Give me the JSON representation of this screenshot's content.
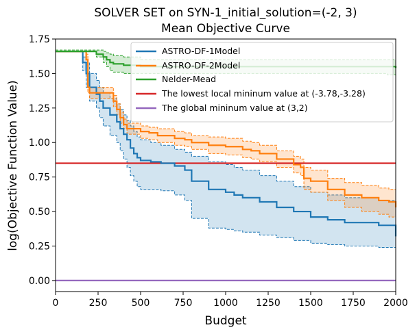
{
  "chart_data": {
    "type": "line",
    "title": "SOLVER SET on SYN-1_initial_solution=(-2, 3)",
    "subtitle": "Mean Objective Curve",
    "xlabel": "Budget",
    "ylabel": "log(Objective Function Value)",
    "xlim": [
      0,
      2000
    ],
    "ylim": [
      -0.08,
      1.75
    ],
    "xticks": [
      0,
      250,
      500,
      750,
      1000,
      1250,
      1500,
      1750,
      2000
    ],
    "xtick_labels": [
      "0",
      "250",
      "500",
      "750",
      "1000",
      "1250",
      "1500",
      "1750",
      "2000"
    ],
    "yticks": [
      0.0,
      0.25,
      0.5,
      0.75,
      1.0,
      1.25,
      1.5,
      1.75
    ],
    "ytick_labels": [
      "0.00",
      "0.25",
      "0.50",
      "0.75",
      "1.00",
      "1.25",
      "1.50",
      "1.75"
    ],
    "grid": false,
    "legend_position": "top-right",
    "series": [
      {
        "name": "ASTRO-DF-1Model",
        "color": "#1f77b4",
        "x": [
          0,
          140,
          160,
          180,
          200,
          240,
          260,
          280,
          320,
          360,
          380,
          400,
          420,
          440,
          460,
          480,
          500,
          560,
          620,
          700,
          760,
          800,
          900,
          1000,
          1050,
          1100,
          1200,
          1300,
          1400,
          1500,
          1600,
          1700,
          1800,
          1900,
          2000
        ],
        "y": [
          1.66,
          1.66,
          1.58,
          1.5,
          1.4,
          1.35,
          1.3,
          1.25,
          1.2,
          1.15,
          1.1,
          1.06,
          1.02,
          0.96,
          0.92,
          0.89,
          0.87,
          0.86,
          0.85,
          0.83,
          0.8,
          0.72,
          0.66,
          0.64,
          0.62,
          0.6,
          0.57,
          0.53,
          0.5,
          0.46,
          0.44,
          0.42,
          0.42,
          0.4,
          0.32
        ],
        "lower": [
          1.66,
          1.66,
          1.52,
          1.4,
          1.3,
          1.25,
          1.18,
          1.12,
          1.05,
          1.0,
          0.94,
          0.88,
          0.82,
          0.76,
          0.72,
          0.68,
          0.66,
          0.66,
          0.65,
          0.62,
          0.58,
          0.45,
          0.38,
          0.37,
          0.36,
          0.35,
          0.33,
          0.31,
          0.29,
          0.27,
          0.26,
          0.25,
          0.25,
          0.24,
          0.22
        ],
        "upper": [
          1.66,
          1.66,
          1.62,
          1.58,
          1.5,
          1.45,
          1.4,
          1.36,
          1.32,
          1.28,
          1.24,
          1.2,
          1.16,
          1.12,
          1.08,
          1.04,
          1.02,
          1.0,
          0.98,
          0.95,
          0.93,
          0.9,
          0.86,
          0.84,
          0.82,
          0.8,
          0.76,
          0.72,
          0.68,
          0.64,
          0.62,
          0.6,
          0.6,
          0.58,
          0.52
        ]
      },
      {
        "name": "ASTRO-DF-2Model",
        "color": "#ff7f0e",
        "x": [
          0,
          170,
          180,
          190,
          200,
          320,
          340,
          360,
          380,
          400,
          420,
          500,
          550,
          600,
          700,
          760,
          800,
          900,
          1000,
          1100,
          1150,
          1200,
          1300,
          1400,
          1440,
          1460,
          1500,
          1600,
          1700,
          1800,
          1900,
          1960,
          2000
        ],
        "y": [
          1.66,
          1.66,
          1.6,
          1.4,
          1.36,
          1.36,
          1.3,
          1.24,
          1.18,
          1.13,
          1.1,
          1.08,
          1.07,
          1.05,
          1.03,
          1.02,
          1.0,
          0.98,
          0.97,
          0.95,
          0.94,
          0.92,
          0.88,
          0.84,
          0.82,
          0.74,
          0.72,
          0.66,
          0.62,
          0.6,
          0.58,
          0.57,
          0.53
        ],
        "lower": [
          1.66,
          1.66,
          1.56,
          1.36,
          1.32,
          1.32,
          1.26,
          1.2,
          1.14,
          1.1,
          1.06,
          1.03,
          1.02,
          1.0,
          0.98,
          0.97,
          0.95,
          0.92,
          0.91,
          0.89,
          0.88,
          0.86,
          0.82,
          0.78,
          0.76,
          0.66,
          0.64,
          0.58,
          0.53,
          0.5,
          0.48,
          0.46,
          0.42
        ],
        "upper": [
          1.66,
          1.66,
          1.64,
          1.46,
          1.4,
          1.4,
          1.34,
          1.28,
          1.22,
          1.17,
          1.14,
          1.12,
          1.11,
          1.1,
          1.08,
          1.07,
          1.05,
          1.04,
          1.03,
          1.01,
          1.0,
          0.98,
          0.94,
          0.9,
          0.88,
          0.82,
          0.8,
          0.74,
          0.71,
          0.69,
          0.67,
          0.66,
          0.63
        ]
      },
      {
        "name": "Nelder-Mead",
        "color": "#2ca02c",
        "x": [
          0,
          180,
          200,
          240,
          280,
          300,
          320,
          340,
          400,
          500,
          600,
          700,
          800,
          1000,
          1200,
          1400,
          1600,
          1800,
          1900,
          1950,
          2000
        ],
        "y": [
          1.66,
          1.66,
          1.66,
          1.64,
          1.62,
          1.6,
          1.58,
          1.57,
          1.56,
          1.55,
          1.55,
          1.55,
          1.55,
          1.55,
          1.55,
          1.55,
          1.55,
          1.55,
          1.55,
          1.55,
          1.54
        ],
        "lower": [
          1.66,
          1.66,
          1.66,
          1.62,
          1.58,
          1.55,
          1.52,
          1.51,
          1.5,
          1.5,
          1.5,
          1.5,
          1.5,
          1.5,
          1.5,
          1.5,
          1.5,
          1.5,
          1.5,
          1.49,
          1.49
        ],
        "upper": [
          1.67,
          1.67,
          1.67,
          1.67,
          1.66,
          1.65,
          1.64,
          1.63,
          1.62,
          1.6,
          1.6,
          1.6,
          1.6,
          1.6,
          1.6,
          1.6,
          1.6,
          1.6,
          1.6,
          1.6,
          1.6
        ]
      }
    ],
    "reference_lines": [
      {
        "name": "The lowest local mininum value at (-3.78,-3.28)",
        "color": "#d62728",
        "y": 0.85
      },
      {
        "name": "The global mininum value at (3,2)",
        "color": "#9467bd",
        "y": 0.0
      }
    ]
  }
}
